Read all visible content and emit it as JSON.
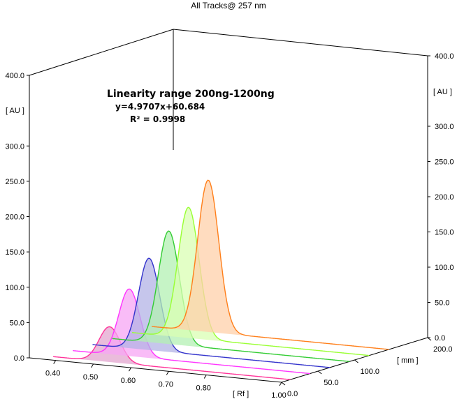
{
  "chart_data": {
    "type": "area",
    "title": "All Tracks@ 257 nm",
    "annotations": {
      "line1": "Linearity range 200ng-1200ng",
      "line2": "y=4.9707x+60.684",
      "line3": "R² = 0.9998"
    },
    "y_axis_left": {
      "label": "[ AU ]",
      "range": [
        0,
        400
      ],
      "ticks": [
        "0.0",
        "50.0",
        "100.0",
        "150.0",
        "200.0",
        "250.0",
        "300.0",
        "400.0"
      ]
    },
    "y_axis_right": {
      "label": "[ AU ]",
      "range": [
        0,
        400
      ],
      "ticks": [
        "0.0",
        "50.0",
        "100.0",
        "150.0",
        "200.0",
        "250.0",
        "300.0",
        "400.0"
      ]
    },
    "x_axis": {
      "label": "[ Rf ]",
      "range": [
        0.33,
        1.0
      ],
      "ticks": [
        "0.40",
        "0.50",
        "0.60",
        "0.70",
        "0.80",
        "1.00"
      ]
    },
    "z_axis": {
      "label": "[ mm ]",
      "range": [
        0,
        200
      ],
      "ticks": [
        "0.0",
        "50.0",
        "100.0",
        "200.0"
      ]
    },
    "series": [
      {
        "color": "#ff3399",
        "fill": "#e3a6cf",
        "peak_rf": 0.52,
        "peak_au": 50
      },
      {
        "color": "#ff33ff",
        "fill": "#f7a6f4",
        "peak_rf": 0.52,
        "peak_au": 95
      },
      {
        "color": "#3333cc",
        "fill": "#b3b3e6",
        "peak_rf": 0.52,
        "peak_au": 130
      },
      {
        "color": "#33cc33",
        "fill": "#b3f0b3",
        "peak_rf": 0.52,
        "peak_au": 160
      },
      {
        "color": "#99ff33",
        "fill": "#d9ffb3",
        "peak_rf": 0.52,
        "peak_au": 185
      },
      {
        "color": "#ff7f1a",
        "fill": "#ffd0aa",
        "peak_rf": 0.52,
        "peak_au": 215
      }
    ],
    "grid": false,
    "legend": "none"
  }
}
